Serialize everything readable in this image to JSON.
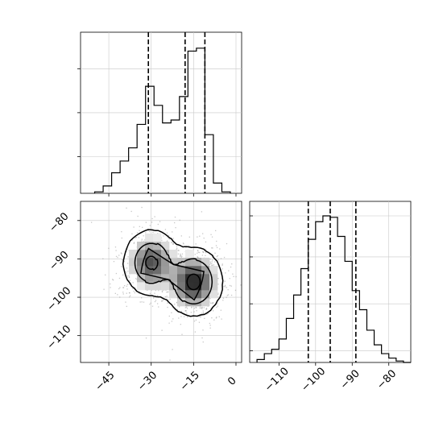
{
  "chart_data": [
    {
      "type": "corner-histogram",
      "panel": "top-left",
      "x_range": [
        -55,
        2
      ],
      "x_ticks": [
        -45,
        -30,
        -15,
        0
      ],
      "grid": true,
      "histogram": {
        "bin_edges": [
          -50,
          -47,
          -44,
          -41,
          -38,
          -35,
          -32,
          -29,
          -26,
          -23,
          -20,
          -17,
          -14,
          -11,
          -8,
          -5,
          -2
        ],
        "counts": [
          0.01,
          0.05,
          0.14,
          0.22,
          0.31,
          0.47,
          0.73,
          0.6,
          0.48,
          0.5,
          0.66,
          0.97,
          0.99,
          0.4,
          0.07,
          0.01
        ]
      },
      "quantiles": [
        -31,
        -18,
        -11
      ]
    },
    {
      "type": "heatmap",
      "panel": "bottom-left",
      "x_range": [
        -55,
        2
      ],
      "y_range": [
        -117,
        -75
      ],
      "x_ticks": [
        -45,
        -30,
        -15,
        0
      ],
      "y_ticks": [
        -80,
        -90,
        -100,
        -110
      ],
      "grid": true,
      "modes": [
        {
          "x": -30,
          "y": -91,
          "weight": 0.45
        },
        {
          "x": -15,
          "y": -96,
          "weight": 0.55
        }
      ]
    },
    {
      "type": "corner-histogram",
      "panel": "bottom-right",
      "x_range": [
        -118,
        -74
      ],
      "x_ticks": [
        -110,
        -100,
        -90,
        -80
      ],
      "grid": true,
      "histogram": {
        "bin_edges": [
          -116,
          -114,
          -112,
          -110,
          -108,
          -106,
          -104,
          -102,
          -100,
          -98,
          -96,
          -94,
          -92,
          -90,
          -88,
          -86,
          -84,
          -82,
          -80,
          -78,
          -76,
          -74
        ],
        "counts": [
          0.02,
          0.06,
          0.09,
          0.16,
          0.3,
          0.46,
          0.64,
          0.84,
          0.96,
          1.0,
          0.99,
          0.86,
          0.69,
          0.49,
          0.36,
          0.22,
          0.12,
          0.06,
          0.03,
          0.01,
          0.0
        ]
      },
      "quantiles": [
        -102,
        -96,
        -89
      ]
    }
  ]
}
